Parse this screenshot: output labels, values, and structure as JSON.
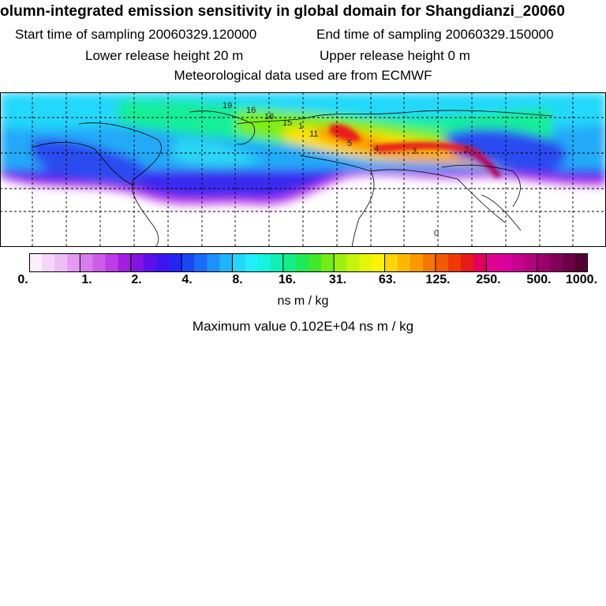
{
  "header": {
    "title": "olumn-integrated emission sensitivity in global domain for Shangdianzi_20060",
    "start_time": "Start time of sampling 20060329.120000",
    "end_time": "End time of sampling 20060329.150000",
    "lower_release": "Lower release height   20 m",
    "upper_release": "Upper release height    0 m",
    "met_data": "Meteorological data used are from ECMWF"
  },
  "map": {
    "contour_labels": [
      "19",
      "16",
      "16",
      "15",
      "1",
      "11",
      "5",
      "4",
      "3",
      "2",
      "0"
    ]
  },
  "colorbar": {
    "tick_labels": [
      "0.",
      "1.",
      "2.",
      "4.",
      "8.",
      "16.",
      "31.",
      "63.",
      "125.",
      "250.",
      "500.",
      "1000."
    ],
    "colors": [
      "#fdeefd",
      "#f6d6f8",
      "#efbdf5",
      "#e49cf2",
      "#d97cee",
      "#cc5de9",
      "#bb3de5",
      "#a21ee2",
      "#8214e6",
      "#5f10ea",
      "#3d16ef",
      "#2426f2",
      "#1a48f5",
      "#1a6cf7",
      "#1b91f9",
      "#1db6fb",
      "#22d6fc",
      "#22edfb",
      "#16f4de",
      "#0ef1b6",
      "#14ee88",
      "#1fea55",
      "#42e827",
      "#72ec14",
      "#9ef010",
      "#c6f30c",
      "#e6f608",
      "#fbf300",
      "#fbd600",
      "#fbb800",
      "#fa9800",
      "#f57700",
      "#f25a00",
      "#ee3a00",
      "#e91a1a",
      "#e4005a",
      "#e10090",
      "#d9009e",
      "#c70090",
      "#b3007e",
      "#9b006c",
      "#820058",
      "#6a0046",
      "#520034"
    ],
    "units": "ns m / kg"
  },
  "footer": {
    "maximum": "Maximum value  0.102E+04 ns m / kg"
  }
}
